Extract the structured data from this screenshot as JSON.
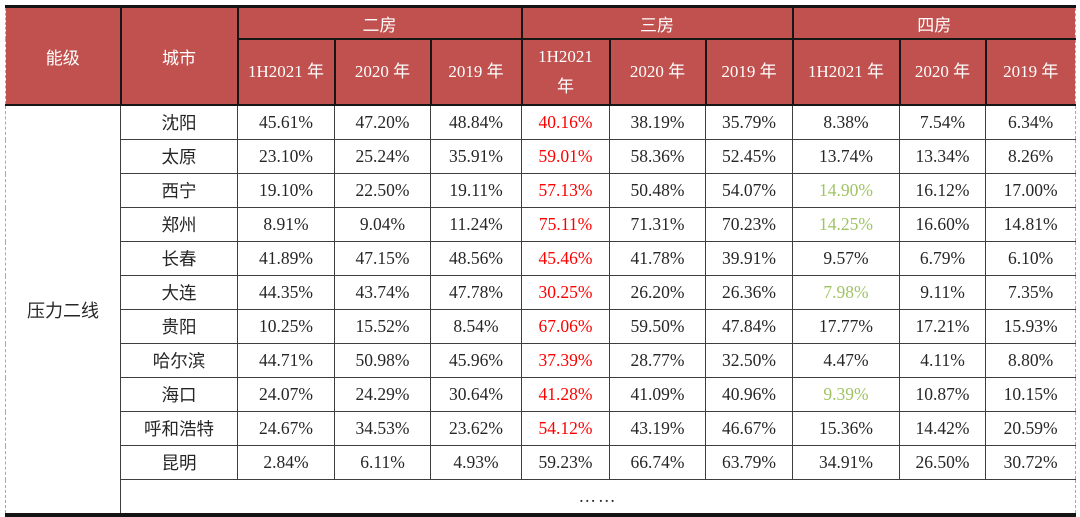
{
  "table": {
    "col1_header": "能级",
    "col2_header": "城市",
    "groups": [
      {
        "label": "二房",
        "years": [
          "1H2021 年",
          "2020 年",
          "2019 年"
        ]
      },
      {
        "label": "三房",
        "years": [
          "1H2021 年",
          "2020 年",
          "2019 年"
        ]
      },
      {
        "label": "四房",
        "years": [
          "1H2021 年",
          "2020 年",
          "2019 年"
        ]
      }
    ],
    "tier": "压力二线",
    "rows": [
      {
        "city": "沈阳",
        "cells": [
          {
            "t": "45.61%"
          },
          {
            "t": "47.20%"
          },
          {
            "t": "48.84%"
          },
          {
            "t": "40.16%",
            "c": "red"
          },
          {
            "t": "38.19%"
          },
          {
            "t": "35.79%"
          },
          {
            "t": "8.38%"
          },
          {
            "t": "7.54%"
          },
          {
            "t": "6.34%"
          }
        ]
      },
      {
        "city": "太原",
        "cells": [
          {
            "t": "23.10%"
          },
          {
            "t": "25.24%"
          },
          {
            "t": "35.91%"
          },
          {
            "t": "59.01%",
            "c": "red"
          },
          {
            "t": "58.36%"
          },
          {
            "t": "52.45%"
          },
          {
            "t": "13.74%"
          },
          {
            "t": "13.34%"
          },
          {
            "t": "8.26%"
          }
        ]
      },
      {
        "city": "西宁",
        "cells": [
          {
            "t": "19.10%"
          },
          {
            "t": "22.50%"
          },
          {
            "t": "19.11%"
          },
          {
            "t": "57.13%",
            "c": "red"
          },
          {
            "t": "50.48%"
          },
          {
            "t": "54.07%"
          },
          {
            "t": "14.90%",
            "c": "green"
          },
          {
            "t": "16.12%"
          },
          {
            "t": "17.00%"
          }
        ]
      },
      {
        "city": "郑州",
        "cells": [
          {
            "t": "8.91%"
          },
          {
            "t": "9.04%"
          },
          {
            "t": "11.24%"
          },
          {
            "t": "75.11%",
            "c": "red"
          },
          {
            "t": "71.31%"
          },
          {
            "t": "70.23%"
          },
          {
            "t": "14.25%",
            "c": "green"
          },
          {
            "t": "16.60%"
          },
          {
            "t": "14.81%"
          }
        ]
      },
      {
        "city": "长春",
        "cells": [
          {
            "t": "41.89%"
          },
          {
            "t": "47.15%"
          },
          {
            "t": "48.56%"
          },
          {
            "t": "45.46%",
            "c": "red"
          },
          {
            "t": "41.78%"
          },
          {
            "t": "39.91%"
          },
          {
            "t": "9.57%"
          },
          {
            "t": "6.79%"
          },
          {
            "t": "6.10%"
          }
        ]
      },
      {
        "city": "大连",
        "cells": [
          {
            "t": "44.35%"
          },
          {
            "t": "43.74%"
          },
          {
            "t": "47.78%"
          },
          {
            "t": "30.25%",
            "c": "red"
          },
          {
            "t": "26.20%"
          },
          {
            "t": "26.36%"
          },
          {
            "t": "7.98%",
            "c": "green"
          },
          {
            "t": "9.11%"
          },
          {
            "t": "7.35%"
          }
        ]
      },
      {
        "city": "贵阳",
        "cells": [
          {
            "t": "10.25%"
          },
          {
            "t": "15.52%"
          },
          {
            "t": "8.54%"
          },
          {
            "t": "67.06%",
            "c": "red"
          },
          {
            "t": "59.50%"
          },
          {
            "t": "47.84%"
          },
          {
            "t": "17.77%"
          },
          {
            "t": "17.21%"
          },
          {
            "t": "15.93%"
          }
        ]
      },
      {
        "city": "哈尔滨",
        "cells": [
          {
            "t": "44.71%"
          },
          {
            "t": "50.98%"
          },
          {
            "t": "45.96%"
          },
          {
            "t": "37.39%",
            "c": "red"
          },
          {
            "t": "28.77%"
          },
          {
            "t": "32.50%"
          },
          {
            "t": "4.47%"
          },
          {
            "t": "4.11%"
          },
          {
            "t": "8.80%"
          }
        ]
      },
      {
        "city": "海口",
        "cells": [
          {
            "t": "24.07%"
          },
          {
            "t": "24.29%"
          },
          {
            "t": "30.64%"
          },
          {
            "t": "41.28%",
            "c": "red"
          },
          {
            "t": "41.09%"
          },
          {
            "t": "40.96%"
          },
          {
            "t": "9.39%",
            "c": "green"
          },
          {
            "t": "10.87%"
          },
          {
            "t": "10.15%"
          }
        ]
      },
      {
        "city": "呼和浩特",
        "cells": [
          {
            "t": "24.67%"
          },
          {
            "t": "34.53%"
          },
          {
            "t": "23.62%"
          },
          {
            "t": "54.12%",
            "c": "red"
          },
          {
            "t": "43.19%"
          },
          {
            "t": "46.67%"
          },
          {
            "t": "15.36%"
          },
          {
            "t": "14.42%"
          },
          {
            "t": "20.59%"
          }
        ]
      },
      {
        "city": "昆明",
        "cells": [
          {
            "t": "2.84%"
          },
          {
            "t": "6.11%"
          },
          {
            "t": "4.93%"
          },
          {
            "t": "59.23%"
          },
          {
            "t": "66.74%"
          },
          {
            "t": "63.79%"
          },
          {
            "t": "34.91%"
          },
          {
            "t": "26.50%"
          },
          {
            "t": "30.72%"
          }
        ]
      }
    ],
    "ellipsis": "……"
  },
  "colors": {
    "header_bg": "#C0514E",
    "header_text": "#FFFFFF",
    "highlight_red": "#FF0000",
    "highlight_green": "#9FC464",
    "body_text": "#262626"
  }
}
